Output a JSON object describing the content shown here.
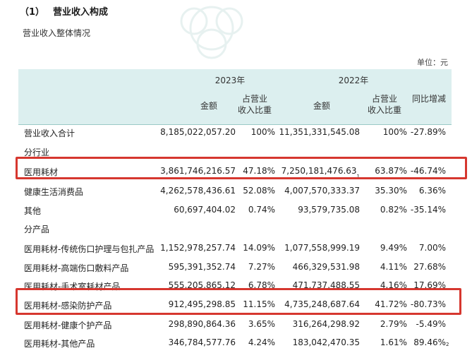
{
  "section": {
    "number": "（1）",
    "title": "营业收入构成"
  },
  "subtitle": "营业收入整体情况",
  "unit": "单位：元",
  "header": {
    "year_2023": "2023年",
    "year_2022": "2022年",
    "amount": "金额",
    "share_line1": "占营业",
    "share_line2": "收入比重",
    "yoy": "同比增减"
  },
  "total": {
    "name": "营业收入合计",
    "amt23": "8,185,022,057.20",
    "pct23": "100%",
    "amt22": "11,351,331,545.08",
    "pct22": "100%",
    "yoy": "-27.89%"
  },
  "group_industry": "分行业",
  "industry_rows": [
    {
      "name": "医用耗材",
      "amt23": "3,861,746,216.57",
      "pct23": "47.18%",
      "amt22": "7,250,181,476.63",
      "sup22": "1",
      "pct22": "63.87%",
      "yoy": "-46.74%"
    },
    {
      "name": "健康生活消费品",
      "amt23": "4,262,578,436.61",
      "pct23": "52.08%",
      "amt22": "4,007,570,333.37",
      "sup22": "",
      "pct22": "35.30%",
      "yoy": "6.36%"
    },
    {
      "name": "其他",
      "amt23": "60,697,404.02",
      "pct23": "0.74%",
      "amt22": "93,579,735.08",
      "sup22": "",
      "pct22": "0.82%",
      "yoy": "-35.14%"
    }
  ],
  "group_product": "分产品",
  "product_rows": [
    {
      "name": "医用耗材-传统伤口护理与包扎产品",
      "amt23": "1,152,978,257.74",
      "pct23": "14.09%",
      "amt22": "1,077,558,999.19",
      "pct22": "9.49%",
      "yoy": "7.00%",
      "sup_yoy": ""
    },
    {
      "name": "医用耗材-高端伤口敷料产品",
      "amt23": "595,391,352.74",
      "pct23": "7.27%",
      "amt22": "466,329,531.98",
      "pct22": "4.11%",
      "yoy": "27.68%",
      "sup_yoy": ""
    },
    {
      "name": "医用耗材-手术室耗材产品",
      "amt23": "555,205,865.12",
      "pct23": "6.78%",
      "amt22": "471,737,488.55",
      "pct22": "4.16%",
      "yoy": "17.69%",
      "sup_yoy": ""
    },
    {
      "name": "医用耗材-感染防护产品",
      "amt23": "912,495,298.85",
      "pct23": "11.15%",
      "amt22": "4,735,248,687.64",
      "pct22": "41.72%",
      "yoy": "-80.73%",
      "sup_yoy": ""
    },
    {
      "name": "医用耗材-健康个护产品",
      "amt23": "298,890,864.36",
      "pct23": "3.65%",
      "amt22": "316,264,298.92",
      "pct22": "2.79%",
      "yoy": "-5.49%",
      "sup_yoy": ""
    },
    {
      "name": "医用耗材-其他产品",
      "amt23": "346,784,577.76",
      "pct23": "4.24%",
      "amt22": "183,042,470.35",
      "pct22": "1.61%",
      "yoy": "89.46%",
      "sup_yoy": "2"
    }
  ],
  "colors": {
    "header_bg": "#dcefef",
    "rule": "#9ac9c6",
    "highlight": "#d6372f"
  }
}
